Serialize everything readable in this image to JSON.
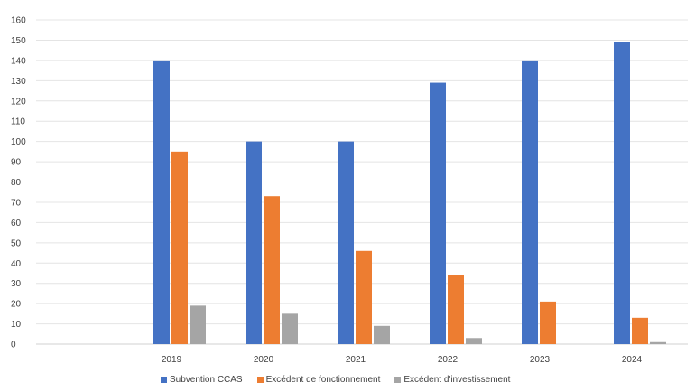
{
  "chart_data": {
    "type": "bar",
    "categories": [
      "2019",
      "2020",
      "2021",
      "2022",
      "2023",
      "2024"
    ],
    "series": [
      {
        "name": "Subvention CCAS",
        "color": "#4472C4",
        "values": [
          140,
          100,
          100,
          129,
          140,
          149
        ]
      },
      {
        "name": "Excédent de fonctionnement",
        "color": "#ED7D31",
        "values": [
          95,
          73,
          46,
          34,
          21,
          13
        ]
      },
      {
        "name": "Excédent d'investissement",
        "color": "#A5A5A5",
        "values": [
          19,
          15,
          9,
          3,
          0,
          1
        ]
      }
    ],
    "title": "",
    "xlabel": "",
    "ylabel": "",
    "ylim": [
      0,
      160
    ],
    "yticks": [
      0,
      10,
      20,
      30,
      40,
      50,
      60,
      70,
      80,
      90,
      100,
      110,
      120,
      130,
      140,
      150,
      160
    ],
    "grid": true,
    "legend": "bottom"
  }
}
